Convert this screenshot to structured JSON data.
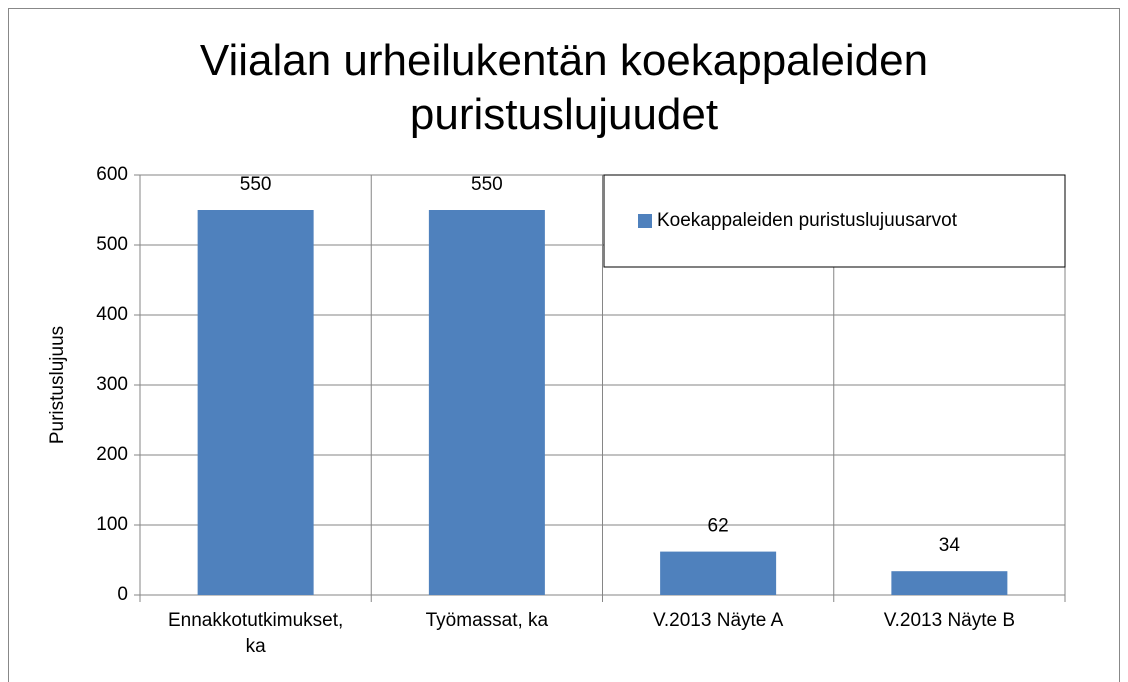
{
  "chart_data": {
    "type": "bar",
    "title": "Viialan urheilukentän koekappaleiden puristuslujuudet",
    "y_label": "Puristuslujuus",
    "categories": [
      "Ennakkotutkimukset, ka",
      "Työmassat, ka",
      "V.2013 Näyte A",
      "V.2013 Näyte B"
    ],
    "series": [
      {
        "name": "Koekappaleiden puristuslujuusarvot",
        "color": "#4f81bd",
        "values": [
          550,
          550,
          62,
          34
        ]
      }
    ],
    "ylim": [
      0,
      600
    ],
    "yticks": [
      0,
      100,
      200,
      300,
      400,
      500,
      600
    ],
    "grid": true,
    "legend": "top-right"
  }
}
